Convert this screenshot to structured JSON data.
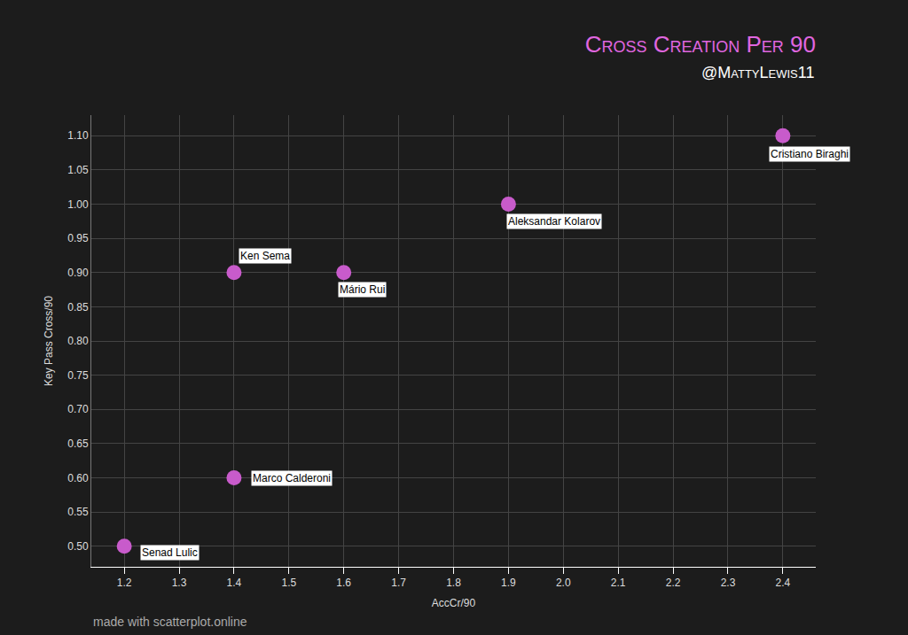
{
  "chart_data": {
    "type": "scatter",
    "title": "Cross Creation Per 90",
    "subtitle": "@MattyLewis11",
    "caption": "made with scatterplot.online",
    "x_label": "AccCr/90",
    "y_label": "Key Pass Cross/90",
    "labels": [
      "Cristiano Biraghi",
      "Aleksandar Kolarov",
      "Ken Sema",
      "Mário Rui",
      "Marco Calderoni",
      "Senad Lulic"
    ],
    "x": [
      2.4,
      1.9,
      1.4,
      1.6,
      1.4,
      1.2
    ],
    "values": [
      1.1,
      1.0,
      0.9,
      0.9,
      0.6,
      0.5
    ],
    "color": "#c85bcb",
    "marker": "circle",
    "xlim": [
      1.14,
      2.46
    ],
    "ylim": [
      0.47,
      1.13
    ],
    "xticks": [
      1.2,
      1.3,
      1.4,
      1.5,
      1.6,
      1.7,
      1.8,
      1.9,
      {
        "value": 2.0,
        "label": "2.0"
      },
      2.1,
      2.2,
      2.3,
      2.4
    ],
    "yticks": [
      {
        "value": 0.5,
        "label": "0.50"
      },
      0.55,
      {
        "value": 0.6,
        "label": "0.60"
      },
      0.65,
      {
        "value": 0.7,
        "label": "0.70"
      },
      0.75,
      {
        "value": 0.8,
        "label": "0.80"
      },
      0.85,
      {
        "value": 0.9,
        "label": "0.90"
      },
      0.95,
      {
        "value": 1.0,
        "label": "1.00"
      },
      1.05,
      {
        "value": 1.1,
        "label": "1.10"
      }
    ],
    "grid": true
  }
}
